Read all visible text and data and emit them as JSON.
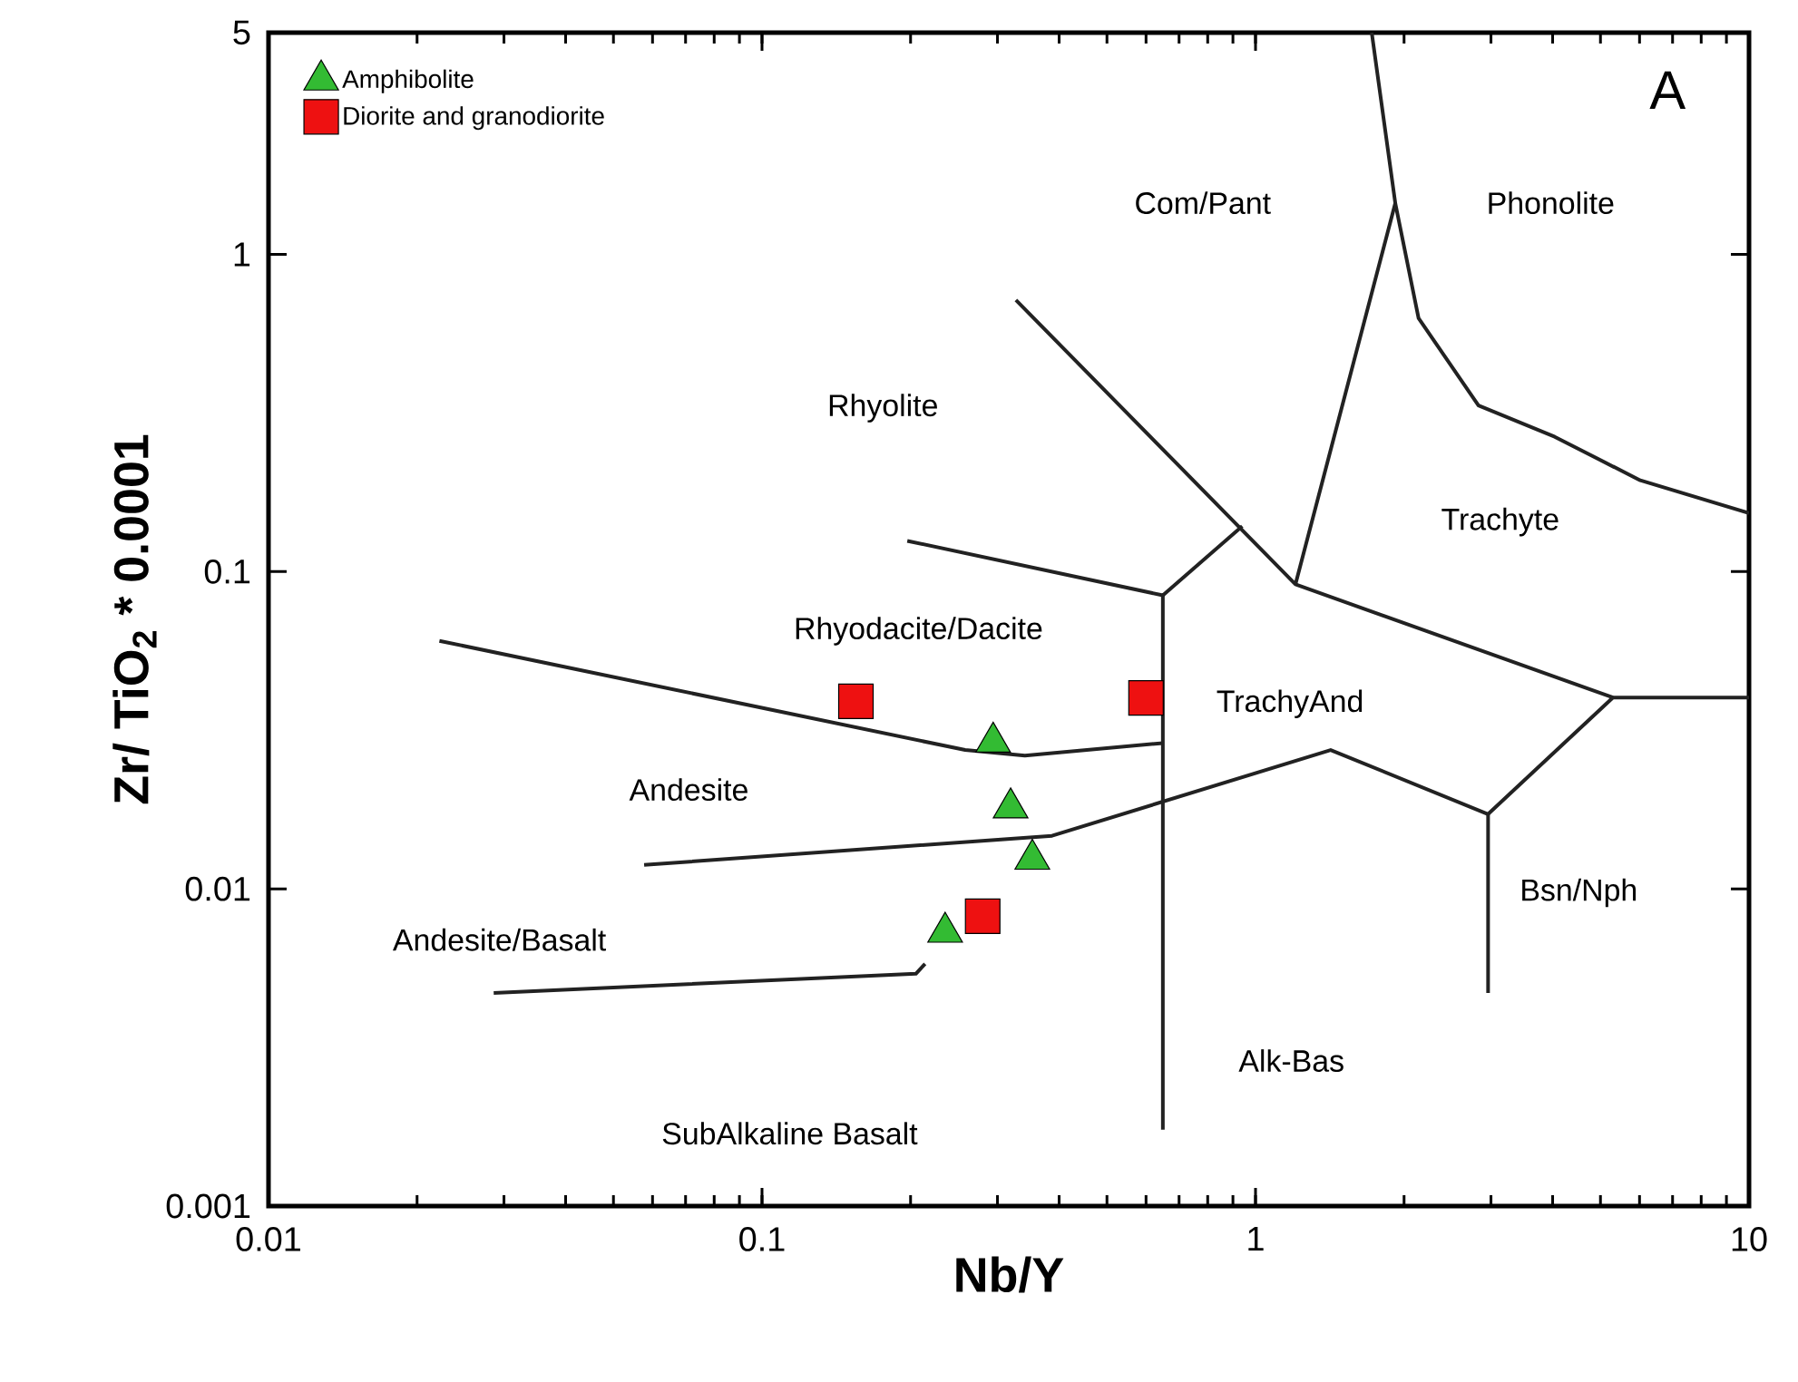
{
  "chart_data": {
    "type": "scatter",
    "xlabel": "Nb/Y",
    "ylabel": "Zr/ TiO$_{2}$ * 0.0001",
    "log": "xy",
    "grid": false,
    "legend": "top left",
    "xlim": [
      0.01,
      10
    ],
    "ylim": [
      0.001,
      5
    ],
    "xticks": [
      0.01,
      0.1,
      1,
      10
    ],
    "yticks": [
      0.001,
      0.01,
      0.1,
      1,
      5
    ],
    "series": [
      {
        "name": "Amphibolite",
        "marker": "triangle",
        "color": "#33bb33",
        "x": [
          0.294,
          0.319,
          0.353,
          0.235
        ],
        "values": [
          0.029,
          0.018,
          0.0124,
          0.0073
        ]
      },
      {
        "name": "Diorite and granodiorite",
        "marker": "square",
        "color": "#ee1111",
        "x": [
          0.155,
          0.6,
          0.28
        ],
        "values": [
          0.039,
          0.04,
          0.0082
        ]
      },
      {
        "type": "line",
        "marker": "none",
        "color": "#222222",
        "x": [
          0.0222,
          0.258,
          0.341,
          0.649
        ],
        "values": [
          0.0605,
          0.0274,
          0.0263,
          0.0288
        ]
      },
      {
        "type": "line",
        "marker": "none",
        "color": "#222222",
        "x": [
          0.0577,
          0.387,
          1.42,
          2.96,
          5.3,
          10
        ],
        "values": [
          0.0119,
          0.0147,
          0.0274,
          0.0172,
          0.0401,
          0.0401
        ]
      },
      {
        "type": "line",
        "marker": "none",
        "color": "#222222",
        "x": [
          0.0286,
          0.205,
          0.214
        ],
        "values": [
          0.0047,
          0.0054,
          0.0058
        ]
      },
      {
        "type": "line",
        "marker": "none",
        "color": "#222222",
        "x": [
          0.197,
          0.649,
          0.94
        ],
        "values": [
          0.125,
          0.0842,
          0.139
        ]
      },
      {
        "type": "line",
        "marker": "none",
        "color": "#222222",
        "x": [
          0.649,
          0.649
        ],
        "values": [
          0.0842,
          0.00174
        ]
      },
      {
        "type": "line",
        "marker": "none",
        "color": "#222222",
        "x": [
          0.327,
          1.205,
          5.3
        ],
        "values": [
          0.718,
          0.0912,
          0.0401
        ]
      },
      {
        "type": "line",
        "marker": "none",
        "color": "#222222",
        "x": [
          1.205,
          1.92,
          1.72
        ],
        "values": [
          0.0912,
          1.45,
          5
        ]
      },
      {
        "type": "line",
        "marker": "none",
        "color": "#222222",
        "x": [
          1.92,
          2.14,
          2.83,
          4.04,
          6.02,
          10
        ],
        "values": [
          1.45,
          0.629,
          0.334,
          0.266,
          0.194,
          0.153
        ]
      },
      {
        "type": "line",
        "marker": "none",
        "color": "#222222",
        "x": [
          2.96,
          2.96
        ],
        "values": [
          0.0172,
          0.0047
        ]
      }
    ],
    "annotations": [
      "A",
      "Com/Pant",
      "Phonolite",
      "Rhyolite",
      "Trachyte",
      "Rhyodacite/Dacite",
      "TrachyAnd",
      "Andesite",
      "Bsn/Nph",
      "Andesite/Basalt",
      "Alk-Bas",
      "SubAlkaline Basalt"
    ]
  }
}
